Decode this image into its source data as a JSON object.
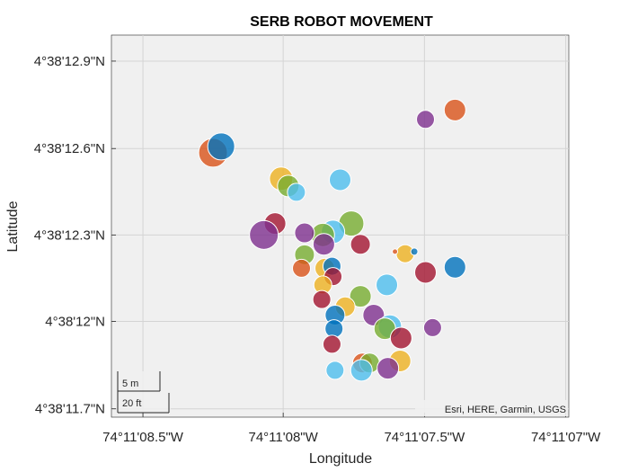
{
  "chart_data": {
    "type": "scatter",
    "title": "SERB ROBOT MOVEMENT",
    "xlabel": "Longitude",
    "ylabel": "Latitude",
    "xlim": [
      -74.185725,
      -74.185275
    ],
    "ylim": [
      4.636575,
      4.636942
    ],
    "grid": true,
    "x_ticks": [
      {
        "value": -74.185694,
        "label": "74°11'08.5\"W"
      },
      {
        "value": -74.185556,
        "label": "74°11'08\"W"
      },
      {
        "value": -74.185417,
        "label": "74°11'07.5\"W"
      },
      {
        "value": -74.185278,
        "label": "74°11'07\"W"
      }
    ],
    "y_ticks": [
      {
        "value": 4.636917,
        "label": "4°38'12.9\"N"
      },
      {
        "value": 4.636833,
        "label": "4°38'12.6\"N"
      },
      {
        "value": 4.63675,
        "label": "4°38'12.3\"N"
      },
      {
        "value": 4.636667,
        "label": "4°38'12\"N"
      },
      {
        "value": 4.636583,
        "label": "4°38'11.7\"N"
      }
    ],
    "scalebar": {
      "metric": "5 m",
      "imperial": "20 ft"
    },
    "attribution": "Esri, HERE, Garmin, USGS",
    "colors": {
      "blue": "#0072BD",
      "orange": "#D95319",
      "yellow": "#EDB120",
      "purple": "#7E2F8E",
      "green": "#77AC30",
      "cyan": "#4DBEEE",
      "red": "#A2142F"
    },
    "points": [
      {
        "lon": -74.185625,
        "lat": 4.636829,
        "size": 16,
        "color": "orange"
      },
      {
        "lon": -74.185617,
        "lat": 4.636835,
        "size": 15,
        "color": "blue"
      },
      {
        "lon": -74.185558,
        "lat": 4.636804,
        "size": 13,
        "color": "yellow"
      },
      {
        "lon": -74.185551,
        "lat": 4.636797,
        "size": 12,
        "color": "green"
      },
      {
        "lon": -74.185543,
        "lat": 4.636791,
        "size": 10,
        "color": "cyan"
      },
      {
        "lon": -74.1855,
        "lat": 4.636803,
        "size": 12,
        "color": "cyan"
      },
      {
        "lon": -74.185564,
        "lat": 4.636761,
        "size": 12,
        "color": "red"
      },
      {
        "lon": -74.185575,
        "lat": 4.63675,
        "size": 16,
        "color": "purple"
      },
      {
        "lon": -74.185489,
        "lat": 4.636761,
        "size": 14,
        "color": "green"
      },
      {
        "lon": -74.185507,
        "lat": 4.636753,
        "size": 13,
        "color": "cyan"
      },
      {
        "lon": -74.185517,
        "lat": 4.63675,
        "size": 13,
        "color": "green"
      },
      {
        "lon": -74.185535,
        "lat": 4.636752,
        "size": 11,
        "color": "purple"
      },
      {
        "lon": -74.185516,
        "lat": 4.636741,
        "size": 12,
        "color": "purple"
      },
      {
        "lon": -74.18548,
        "lat": 4.636741,
        "size": 11,
        "color": "red"
      },
      {
        "lon": -74.185535,
        "lat": 4.636731,
        "size": 11,
        "color": "green"
      },
      {
        "lon": -74.185538,
        "lat": 4.636718,
        "size": 10,
        "color": "orange"
      },
      {
        "lon": -74.185515,
        "lat": 4.636718,
        "size": 11,
        "color": "yellow"
      },
      {
        "lon": -74.185508,
        "lat": 4.63672,
        "size": 10,
        "color": "blue"
      },
      {
        "lon": -74.185507,
        "lat": 4.63671,
        "size": 10,
        "color": "red"
      },
      {
        "lon": -74.185436,
        "lat": 4.636732,
        "size": 10,
        "color": "yellow"
      },
      {
        "lon": -74.185446,
        "lat": 4.636734,
        "size": 3,
        "color": "orange"
      },
      {
        "lon": -74.185427,
        "lat": 4.636734,
        "size": 4,
        "color": "blue"
      },
      {
        "lon": -74.185416,
        "lat": 4.636714,
        "size": 12,
        "color": "red"
      },
      {
        "lon": -74.185387,
        "lat": 4.636719,
        "size": 12,
        "color": "blue"
      },
      {
        "lon": -74.185454,
        "lat": 4.636702,
        "size": 12,
        "color": "cyan"
      },
      {
        "lon": -74.185517,
        "lat": 4.636702,
        "size": 10,
        "color": "yellow"
      },
      {
        "lon": -74.185518,
        "lat": 4.636688,
        "size": 10,
        "color": "red"
      },
      {
        "lon": -74.18548,
        "lat": 4.636691,
        "size": 12,
        "color": "green"
      },
      {
        "lon": -74.185495,
        "lat": 4.636681,
        "size": 11,
        "color": "yellow"
      },
      {
        "lon": -74.185505,
        "lat": 4.636673,
        "size": 11,
        "color": "blue"
      },
      {
        "lon": -74.185467,
        "lat": 4.636673,
        "size": 12,
        "color": "purple"
      },
      {
        "lon": -74.185451,
        "lat": 4.636662,
        "size": 13,
        "color": "cyan"
      },
      {
        "lon": -74.185456,
        "lat": 4.63666,
        "size": 12,
        "color": "green"
      },
      {
        "lon": -74.185506,
        "lat": 4.63666,
        "size": 10,
        "color": "blue"
      },
      {
        "lon": -74.18544,
        "lat": 4.636651,
        "size": 12,
        "color": "red"
      },
      {
        "lon": -74.185508,
        "lat": 4.636645,
        "size": 10,
        "color": "red"
      },
      {
        "lon": -74.185409,
        "lat": 4.636661,
        "size": 10,
        "color": "purple"
      },
      {
        "lon": -74.185441,
        "lat": 4.636629,
        "size": 12,
        "color": "yellow"
      },
      {
        "lon": -74.185478,
        "lat": 4.636627,
        "size": 11,
        "color": "orange"
      },
      {
        "lon": -74.185471,
        "lat": 4.636627,
        "size": 11,
        "color": "green"
      },
      {
        "lon": -74.185453,
        "lat": 4.636622,
        "size": 12,
        "color": "purple"
      },
      {
        "lon": -74.185479,
        "lat": 4.63662,
        "size": 12,
        "color": "cyan"
      },
      {
        "lon": -74.185505,
        "lat": 4.63662,
        "size": 10,
        "color": "cyan"
      },
      {
        "lon": -74.185416,
        "lat": 4.636861,
        "size": 10,
        "color": "purple"
      },
      {
        "lon": -74.185387,
        "lat": 4.63687,
        "size": 12,
        "color": "orange"
      }
    ]
  }
}
